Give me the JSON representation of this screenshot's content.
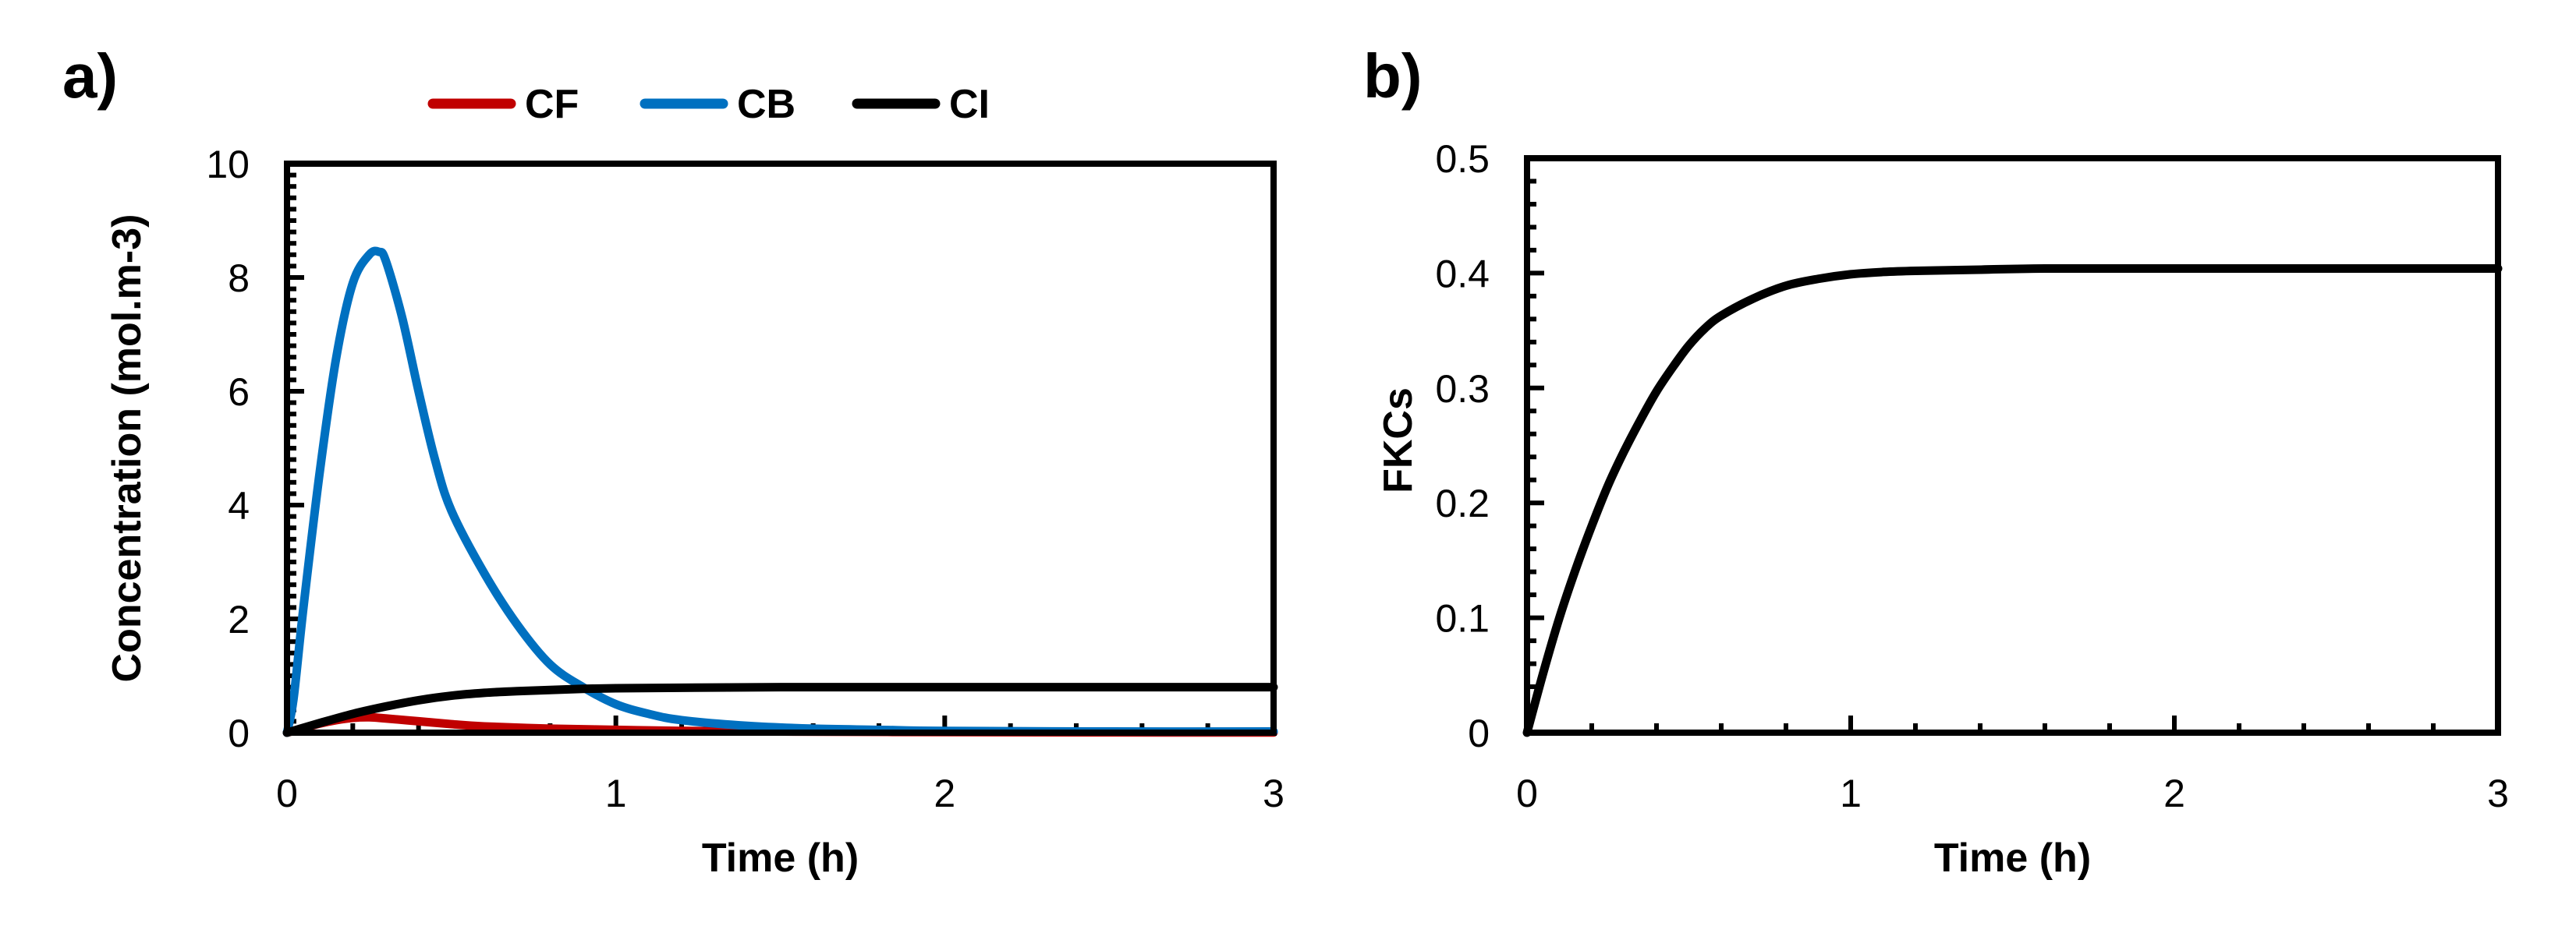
{
  "chart_data": [
    {
      "panel_label": "a)",
      "type": "line",
      "xlabel": "Time (h)",
      "ylabel": "Concentration (mol.m-3)",
      "xlim": [
        0,
        3
      ],
      "ylim": [
        0,
        10
      ],
      "x_ticks": [
        0,
        1,
        2,
        3
      ],
      "y_ticks": [
        0,
        2,
        4,
        6,
        8,
        10
      ],
      "legend_position": "top",
      "series": [
        {
          "name": "CF",
          "color": "#C00000",
          "x": [
            0,
            0.05,
            0.1,
            0.15,
            0.2,
            0.25,
            0.3,
            0.4,
            0.5,
            0.6,
            0.8,
            1.0,
            1.2,
            1.5,
            2.0,
            2.5,
            3.0
          ],
          "y": [
            0,
            0.08,
            0.16,
            0.22,
            0.26,
            0.27,
            0.25,
            0.2,
            0.15,
            0.11,
            0.07,
            0.05,
            0.03,
            0.02,
            0.01,
            0.005,
            0.003
          ]
        },
        {
          "name": "CB",
          "color": "#0070C0",
          "x": [
            0,
            0.02,
            0.05,
            0.1,
            0.15,
            0.2,
            0.25,
            0.28,
            0.3,
            0.35,
            0.4,
            0.45,
            0.5,
            0.6,
            0.7,
            0.8,
            0.9,
            1.0,
            1.1,
            1.2,
            1.4,
            1.6,
            1.8,
            2.0,
            2.5,
            3.0
          ],
          "y": [
            0,
            0.6,
            2.2,
            4.6,
            6.6,
            7.9,
            8.4,
            8.45,
            8.3,
            7.3,
            6.0,
            4.8,
            3.9,
            2.8,
            1.9,
            1.2,
            0.8,
            0.5,
            0.33,
            0.22,
            0.12,
            0.07,
            0.05,
            0.03,
            0.02,
            0.02
          ]
        },
        {
          "name": "CI",
          "color": "#000000",
          "x": [
            0,
            0.1,
            0.2,
            0.3,
            0.4,
            0.5,
            0.6,
            0.7,
            0.8,
            0.9,
            1.0,
            1.2,
            1.5,
            2.0,
            2.5,
            3.0
          ],
          "y": [
            0,
            0.17,
            0.33,
            0.46,
            0.57,
            0.65,
            0.7,
            0.73,
            0.75,
            0.77,
            0.78,
            0.79,
            0.8,
            0.8,
            0.8,
            0.8
          ]
        }
      ]
    },
    {
      "panel_label": "b)",
      "type": "line",
      "xlabel": "Time (h)",
      "ylabel": "FKCs",
      "xlim": [
        0,
        3
      ],
      "ylim": [
        0,
        0.5
      ],
      "x_ticks": [
        0,
        1,
        2,
        3
      ],
      "y_ticks": [
        0,
        0.1,
        0.2,
        0.3,
        0.4,
        0.5
      ],
      "series": [
        {
          "name": "",
          "color": "#000000",
          "x": [
            0,
            0.05,
            0.1,
            0.15,
            0.2,
            0.25,
            0.3,
            0.35,
            0.4,
            0.45,
            0.5,
            0.55,
            0.6,
            0.7,
            0.8,
            0.9,
            1.0,
            1.1,
            1.2,
            1.4,
            1.6,
            2.0,
            2.5,
            3.0
          ],
          "y": [
            0,
            0.052,
            0.1,
            0.142,
            0.18,
            0.215,
            0.245,
            0.272,
            0.297,
            0.318,
            0.337,
            0.352,
            0.363,
            0.378,
            0.389,
            0.395,
            0.399,
            0.401,
            0.402,
            0.403,
            0.404,
            0.404,
            0.404,
            0.404
          ]
        }
      ]
    }
  ]
}
